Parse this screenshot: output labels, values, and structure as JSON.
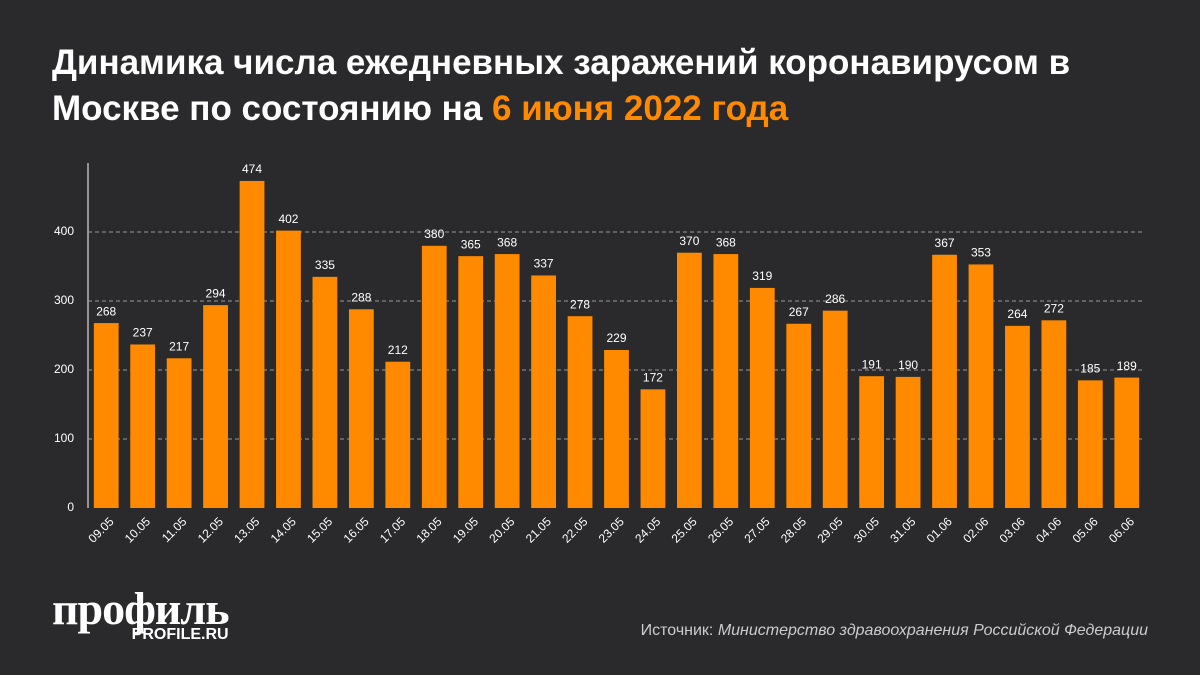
{
  "chart_data": {
    "type": "bar",
    "title": "Динамика числа ежедневных заражений коронавирусом в Москве по состоянию на",
    "title_highlight": "6 июня 2022 года",
    "categories": [
      "09.05",
      "10.05",
      "11.05",
      "12.05",
      "13.05",
      "14.05",
      "15.05",
      "16.05",
      "17.05",
      "18.05",
      "19.05",
      "20.05",
      "21.05",
      "22.05",
      "23.05",
      "24.05",
      "25.05",
      "26.05",
      "27.05",
      "28.05",
      "29.05",
      "30.05",
      "31.05",
      "01.06",
      "02.06",
      "03.06",
      "04.06",
      "05.06",
      "06.06"
    ],
    "values": [
      268,
      237,
      217,
      294,
      474,
      402,
      335,
      288,
      212,
      380,
      365,
      368,
      337,
      278,
      229,
      172,
      370,
      368,
      319,
      267,
      286,
      191,
      190,
      367,
      353,
      264,
      272,
      185,
      189
    ],
    "color": "#ff8a00",
    "ylim": [
      0,
      500
    ],
    "yticks": [
      0,
      100,
      200,
      300,
      400
    ],
    "grid": true
  },
  "logo": {
    "name": "профиль",
    "site": "PROFILE.RU"
  },
  "source": {
    "label": "Источник:",
    "text": "Министерство здравоохранения Российской Федерации"
  }
}
